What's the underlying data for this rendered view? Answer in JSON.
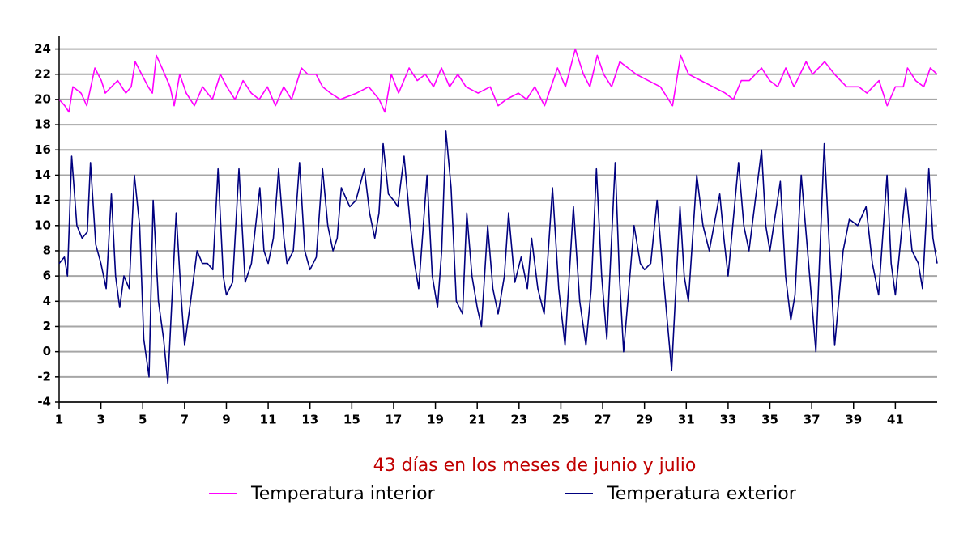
{
  "chart_data": {
    "type": "line",
    "xlabel": "43 días en los meses de junio y julio",
    "xlim": [
      1,
      43
    ],
    "xticks": [
      1,
      3,
      5,
      7,
      9,
      11,
      13,
      15,
      17,
      19,
      21,
      23,
      25,
      27,
      29,
      31,
      33,
      35,
      37,
      39,
      41
    ],
    "ylim": [
      -4,
      25
    ],
    "yticks": [
      -4,
      -2,
      0,
      2,
      4,
      6,
      8,
      10,
      12,
      14,
      16,
      18,
      20,
      22,
      24
    ],
    "grid": true,
    "legend": "bottom",
    "series": [
      {
        "name": "Temperatura interior",
        "color": "#ff00ff",
        "x": [
          1,
          1.27,
          1.47,
          1.66,
          2.05,
          2.32,
          2.71,
          3.02,
          3.21,
          3.8,
          4.19,
          4.45,
          4.64,
          4.95,
          5.26,
          5.46,
          5.65,
          5.92,
          6.31,
          6.5,
          6.77,
          7.08,
          7.47,
          7.86,
          8.33,
          8.71,
          9.02,
          9.41,
          9.8,
          10.19,
          10.57,
          10.96,
          11.35,
          11.74,
          12.12,
          12.59,
          12.9,
          13.29,
          13.6,
          13.98,
          14.45,
          15.23,
          15.81,
          16.31,
          16.58,
          16.89,
          17.24,
          17.74,
          18.13,
          18.52,
          18.91,
          19.29,
          19.68,
          20.07,
          20.46,
          21.04,
          21.62,
          22.0,
          22.39,
          22.97,
          23.36,
          23.75,
          24.22,
          24.84,
          25.22,
          25.69,
          26.08,
          26.39,
          26.74,
          27.05,
          27.43,
          27.82,
          28.21,
          28.6,
          29.18,
          29.76,
          30.34,
          30.73,
          31.11,
          31.7,
          32.28,
          32.86,
          33.25,
          33.63,
          34.02,
          34.6,
          34.99,
          35.37,
          35.76,
          36.15,
          36.73,
          37.04,
          37.62,
          38.09,
          38.67,
          39.25,
          39.64,
          40.22,
          40.61,
          41.0,
          41.38,
          41.58,
          41.97,
          42.36,
          42.67,
          43
        ],
        "values": [
          20,
          19.5,
          19,
          21,
          20.5,
          19.5,
          22.5,
          21.5,
          20.5,
          21.5,
          20.5,
          21,
          23,
          22,
          21,
          20.5,
          23.5,
          22.5,
          21,
          19.5,
          22,
          20.5,
          19.5,
          21,
          20,
          22,
          21,
          20,
          21.5,
          20.5,
          20,
          21,
          19.5,
          21,
          20,
          22.5,
          22,
          22,
          21,
          20.5,
          20,
          20.5,
          21,
          20,
          19,
          22,
          20.5,
          22.5,
          21.5,
          22,
          21,
          22.5,
          21,
          22,
          21,
          20.5,
          21,
          19.5,
          20,
          20.5,
          20,
          21,
          19.5,
          22.5,
          21,
          24,
          22,
          21,
          23.5,
          22,
          21,
          23,
          22.5,
          22,
          21.5,
          21,
          19.5,
          23.5,
          22,
          21.5,
          21,
          20.5,
          20,
          21.5,
          21.5,
          22.5,
          21.5,
          21,
          22.5,
          21,
          23,
          22,
          23,
          22,
          21,
          21,
          20.5,
          21.5,
          19.5,
          21,
          21,
          22.5,
          21.5,
          21,
          22.5,
          22
        ]
      },
      {
        "name": "Temperatura exterior",
        "color": "#00007f",
        "x": [
          1,
          1.25,
          1.4,
          1.6,
          1.85,
          2.1,
          2.35,
          2.5,
          2.75,
          3,
          3.25,
          3.5,
          3.7,
          3.9,
          4.1,
          4.35,
          4.6,
          4.85,
          5.05,
          5.3,
          5.5,
          5.75,
          6.0,
          6.2,
          6.6,
          6.85,
          7.0,
          7.25,
          7.6,
          7.85,
          8.1,
          8.35,
          8.6,
          8.85,
          9.0,
          9.3,
          9.6,
          9.9,
          10.2,
          10.6,
          10.8,
          11.0,
          11.25,
          11.5,
          11.75,
          11.9,
          12.2,
          12.5,
          12.75,
          13.0,
          13.3,
          13.6,
          13.85,
          14.1,
          14.3,
          14.5,
          14.9,
          15.2,
          15.6,
          15.85,
          16.1,
          16.3,
          16.5,
          16.75,
          17.0,
          17.2,
          17.5,
          17.8,
          18.0,
          18.2,
          18.6,
          18.85,
          19.1,
          19.3,
          19.5,
          19.75,
          20.0,
          20.3,
          20.5,
          20.75,
          21.0,
          21.2,
          21.5,
          21.75,
          22.0,
          22.3,
          22.5,
          22.8,
          23.1,
          23.4,
          23.6,
          23.9,
          24.2,
          24.6,
          24.9,
          25.2,
          25.6,
          25.9,
          26.2,
          26.45,
          26.7,
          26.95,
          27.2,
          27.6,
          27.8,
          28.0,
          28.5,
          28.8,
          29.0,
          29.3,
          29.6,
          29.9,
          30.3,
          30.7,
          30.9,
          31.1,
          31.5,
          31.8,
          32.1,
          32.6,
          32.8,
          33.0,
          33.5,
          33.75,
          34.0,
          34.6,
          34.8,
          35.0,
          35.5,
          35.75,
          36.0,
          36.2,
          36.5,
          36.85,
          37.2,
          37.6,
          37.85,
          38.1,
          38.5,
          38.8,
          39.2,
          39.6,
          39.9,
          40.2,
          40.6,
          40.8,
          41.0,
          41.5,
          41.8,
          42.1,
          42.3,
          42.6,
          42.8,
          43
        ],
        "values": [
          7,
          7.5,
          6,
          15.5,
          10,
          9,
          9.5,
          15,
          8.5,
          7,
          5,
          12.5,
          6,
          3.5,
          6,
          5,
          14,
          10,
          1,
          -2,
          12,
          4,
          1,
          -2.5,
          11,
          4,
          0.5,
          3.5,
          8,
          7,
          7,
          6.5,
          14.5,
          6,
          4.5,
          5.5,
          14.5,
          5.5,
          7,
          13,
          8,
          7,
          9,
          14.5,
          9,
          7,
          8,
          15,
          8,
          6.5,
          7.5,
          14.5,
          10,
          8,
          9,
          13,
          11.5,
          12,
          14.5,
          11,
          9,
          11,
          16.5,
          12.5,
          12,
          11.5,
          15.5,
          10,
          7,
          5,
          14,
          6,
          3.5,
          8,
          17.5,
          13,
          4,
          3,
          11,
          6,
          3.5,
          2,
          10,
          5,
          3,
          6,
          11,
          5.5,
          7.5,
          5,
          9,
          5,
          3,
          13,
          5,
          0.5,
          11.5,
          4,
          0.5,
          5,
          14.5,
          6,
          1,
          15,
          6,
          0,
          10,
          7,
          6.5,
          7,
          12,
          6,
          -1.5,
          11.5,
          6,
          4,
          14,
          10,
          8,
          12.5,
          9,
          6,
          15,
          10,
          8,
          16,
          10,
          8,
          13.5,
          6,
          2.5,
          4.5,
          14,
          7,
          0,
          16.5,
          8,
          0.5,
          8,
          10.5,
          10,
          11.5,
          7,
          4.5,
          14,
          7,
          4.5,
          13,
          8,
          7,
          5,
          14.5,
          9,
          7
        ]
      }
    ]
  }
}
